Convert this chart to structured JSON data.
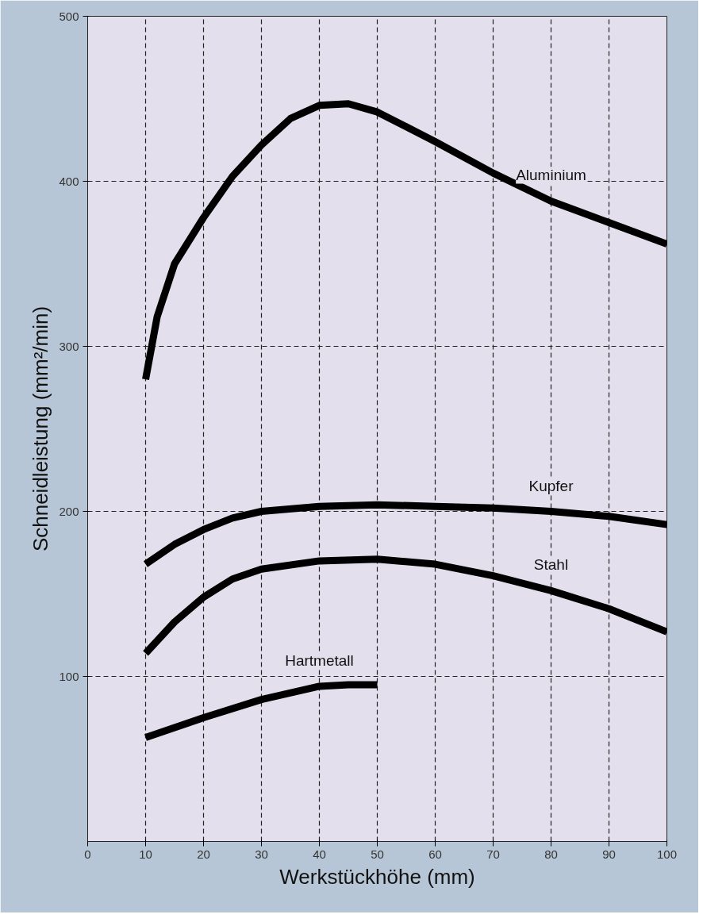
{
  "chart_data": {
    "type": "line",
    "xlabel": "Werkstückhöhe (mm)",
    "ylabel": "Schneidleistung (mm²/min)",
    "xlim": [
      0,
      100
    ],
    "ylim": [
      0,
      500
    ],
    "xticks": [
      0,
      10,
      20,
      30,
      40,
      50,
      60,
      70,
      80,
      90,
      100
    ],
    "yticks": [
      100,
      200,
      300,
      400,
      500
    ],
    "grid": true,
    "marker": "none",
    "line_style": "solid",
    "series": [
      {
        "name": "Aluminium",
        "color": "#000000",
        "x": [
          10,
          12,
          15,
          20,
          25,
          30,
          35,
          40,
          45,
          50,
          55,
          60,
          70,
          80,
          90,
          100
        ],
        "values": [
          280,
          318,
          350,
          378,
          403,
          422,
          438,
          446,
          447,
          442,
          433,
          424,
          405,
          388,
          375,
          362
        ]
      },
      {
        "name": "Kupfer",
        "color": "#000000",
        "x": [
          10,
          15,
          20,
          25,
          30,
          40,
          50,
          60,
          70,
          80,
          90,
          100
        ],
        "values": [
          168,
          180,
          189,
          196,
          200,
          203,
          204,
          203,
          202,
          200,
          197,
          192
        ]
      },
      {
        "name": "Stahl",
        "color": "#000000",
        "x": [
          10,
          15,
          20,
          25,
          30,
          40,
          50,
          60,
          70,
          80,
          90,
          100
        ],
        "values": [
          114,
          133,
          148,
          159,
          165,
          170,
          171,
          168,
          161,
          152,
          141,
          127
        ]
      },
      {
        "name": "Hartmetall",
        "color": "#000000",
        "x": [
          10,
          20,
          30,
          40,
          45,
          50
        ],
        "values": [
          63,
          75,
          86,
          94,
          95,
          95
        ]
      }
    ]
  }
}
